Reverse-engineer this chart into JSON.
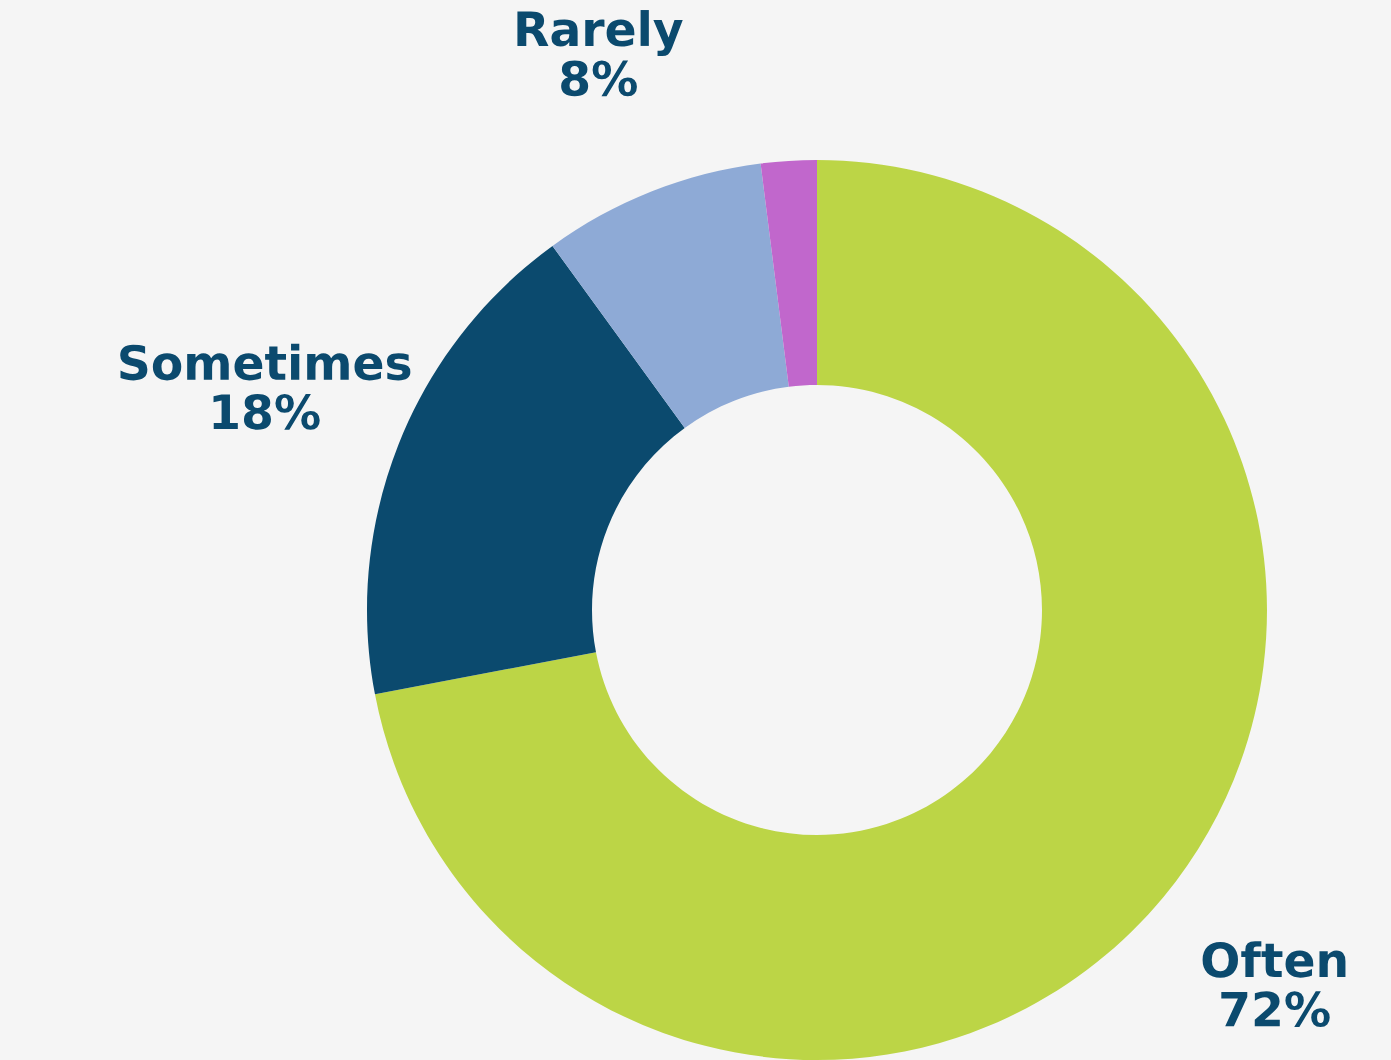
{
  "chart_data": {
    "type": "donut",
    "categories": [
      "Often",
      "Sometimes",
      "Rarely",
      null
    ],
    "values": [
      72,
      18,
      8,
      2
    ],
    "colors": [
      "#bcd546",
      "#0b4a6e",
      "#8eaad6",
      "#c167cc"
    ],
    "value_labels": [
      "72%",
      "18%",
      "8%",
      null
    ],
    "legend": false
  }
}
